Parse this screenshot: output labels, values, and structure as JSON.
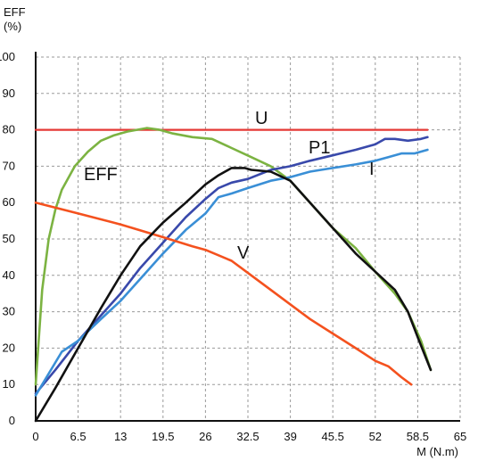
{
  "chart_data": {
    "type": "line",
    "y_axis_title_lines": [
      "EFF",
      "(%)"
    ],
    "x_axis_title": "M (N.m)",
    "y_ticks": [
      0,
      10,
      20,
      30,
      40,
      50,
      60,
      70,
      80,
      90,
      100
    ],
    "x_ticks": [
      "0",
      "6.5",
      "13",
      "19.5",
      "26",
      "32.5",
      "39",
      "45.5",
      "52",
      "58.5",
      "65"
    ],
    "xlim": [
      0,
      65
    ],
    "ylim": [
      0,
      100
    ],
    "grid": true,
    "series": [
      {
        "name": "U",
        "color": "#e53935",
        "points": [
          [
            0,
            80
          ],
          [
            60,
            80
          ]
        ]
      },
      {
        "name": "EFF",
        "color": "#7cb342",
        "points": [
          [
            0,
            10
          ],
          [
            1,
            36
          ],
          [
            2,
            50
          ],
          [
            3,
            58
          ],
          [
            4,
            63.5
          ],
          [
            6,
            70
          ],
          [
            8,
            74
          ],
          [
            10,
            77
          ],
          [
            12,
            78.5
          ],
          [
            14,
            79.5
          ],
          [
            17,
            80.5
          ],
          [
            19,
            80
          ],
          [
            21,
            79
          ],
          [
            24,
            78
          ],
          [
            27,
            77.5
          ],
          [
            30,
            75
          ],
          [
            33,
            72.5
          ],
          [
            36,
            70
          ],
          [
            39,
            66
          ],
          [
            42,
            60
          ],
          [
            45.5,
            53
          ],
          [
            49,
            47.5
          ],
          [
            52,
            41
          ],
          [
            55,
            35
          ],
          [
            57,
            30
          ],
          [
            59,
            22
          ],
          [
            60.5,
            14
          ]
        ]
      },
      {
        "name": "P1",
        "color": "#3949ab",
        "points": [
          [
            0,
            7.5
          ],
          [
            3,
            14
          ],
          [
            6.5,
            22
          ],
          [
            10,
            29
          ],
          [
            13,
            35
          ],
          [
            16,
            42
          ],
          [
            19.5,
            49
          ],
          [
            23,
            56
          ],
          [
            26,
            61
          ],
          [
            28,
            64
          ],
          [
            30,
            65.5
          ],
          [
            32.5,
            66.5
          ],
          [
            36,
            69
          ],
          [
            39,
            70
          ],
          [
            42,
            71.5
          ],
          [
            45.5,
            73
          ],
          [
            49,
            74.5
          ],
          [
            52,
            76
          ],
          [
            53.5,
            77.5
          ],
          [
            55,
            77.5
          ],
          [
            57,
            77
          ],
          [
            59,
            77.5
          ],
          [
            60,
            78
          ]
        ]
      },
      {
        "name": "I",
        "color": "#3a8fd6",
        "points": [
          [
            0,
            7
          ],
          [
            2,
            13
          ],
          [
            4,
            19
          ],
          [
            6.5,
            22
          ],
          [
            10,
            28
          ],
          [
            13,
            33
          ],
          [
            16,
            39
          ],
          [
            19.5,
            46
          ],
          [
            23,
            52.5
          ],
          [
            26,
            57
          ],
          [
            28,
            61.5
          ],
          [
            30,
            62.5
          ],
          [
            32.5,
            64
          ],
          [
            36,
            66
          ],
          [
            39,
            67
          ],
          [
            42,
            68.5
          ],
          [
            45.5,
            69.5
          ],
          [
            49,
            70.5
          ],
          [
            52,
            71.5
          ],
          [
            54,
            72.5
          ],
          [
            56,
            73.5
          ],
          [
            58,
            73.5
          ],
          [
            60,
            74.5
          ]
        ]
      },
      {
        "name": "V",
        "color": "#f4511e",
        "points": [
          [
            0,
            60
          ],
          [
            6.5,
            57
          ],
          [
            13,
            54
          ],
          [
            19.5,
            50.5
          ],
          [
            24,
            48
          ],
          [
            26,
            47
          ],
          [
            30,
            44
          ],
          [
            33,
            40
          ],
          [
            36,
            36
          ],
          [
            39,
            32
          ],
          [
            42,
            28
          ],
          [
            45.5,
            24
          ],
          [
            49,
            20
          ],
          [
            52,
            16.5
          ],
          [
            54,
            15
          ],
          [
            56,
            12
          ],
          [
            57.5,
            10
          ]
        ]
      },
      {
        "name": "",
        "color": "#111111",
        "points": [
          [
            0,
            0
          ],
          [
            3,
            9
          ],
          [
            6.5,
            20
          ],
          [
            10,
            31
          ],
          [
            13,
            40
          ],
          [
            16,
            48
          ],
          [
            19.5,
            54.5
          ],
          [
            23,
            60
          ],
          [
            26,
            65
          ],
          [
            28,
            67.5
          ],
          [
            30,
            69.5
          ],
          [
            32,
            69.5
          ],
          [
            33,
            69
          ],
          [
            36,
            68.5
          ],
          [
            39,
            66
          ],
          [
            42,
            60
          ],
          [
            45.5,
            53
          ],
          [
            49,
            46
          ],
          [
            52,
            41
          ],
          [
            55,
            36
          ],
          [
            57,
            30
          ],
          [
            58.5,
            23
          ],
          [
            60.5,
            14
          ]
        ]
      }
    ],
    "labels": [
      "U",
      "EFF",
      "P1",
      "I",
      "V"
    ]
  }
}
